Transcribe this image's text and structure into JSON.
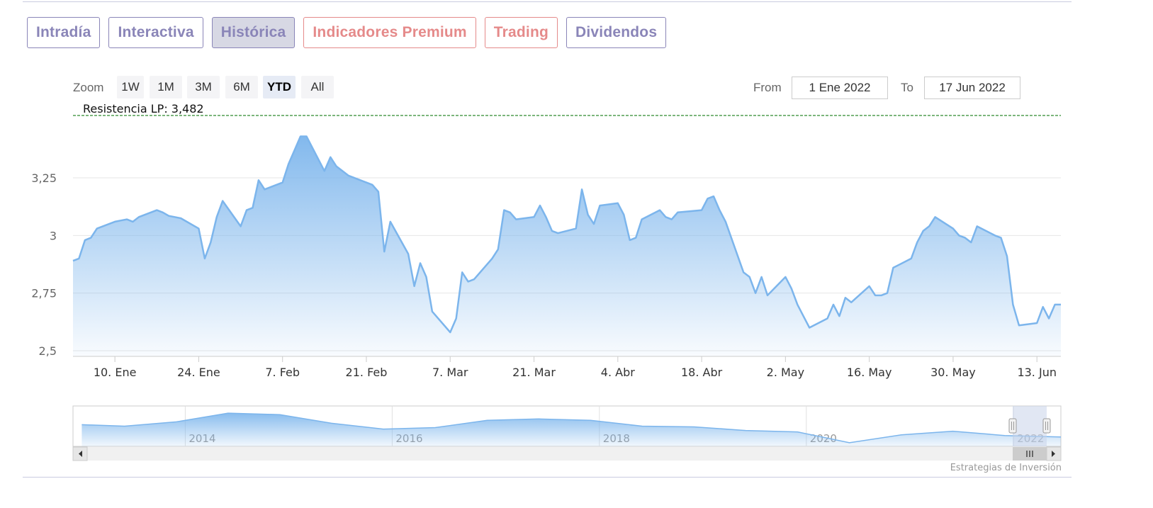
{
  "tabs": [
    {
      "label": "Intradía",
      "style": "normal"
    },
    {
      "label": "Interactiva",
      "style": "normal"
    },
    {
      "label": "Histórica",
      "style": "active"
    },
    {
      "label": "Indicadores Premium",
      "style": "premium"
    },
    {
      "label": "Trading",
      "style": "premium"
    },
    {
      "label": "Dividendos",
      "style": "normal"
    }
  ],
  "range_selector": {
    "zoom_label": "Zoom",
    "buttons": [
      "1W",
      "1M",
      "3M",
      "6M",
      "YTD",
      "All"
    ],
    "selected": "YTD",
    "from_label": "From",
    "from_value": "1 Ene 2022",
    "to_label": "To",
    "to_value": "17 Jun 2022"
  },
  "credits": "Estrategias de Inversión",
  "colors": {
    "line": "#7cb5ec",
    "fill_top": "#7cb5ec",
    "resistance": "#2e8b2e",
    "tab_text": "#8a85b8",
    "premium_text": "#e58a8a",
    "navigator_mask": "#c9d4ea"
  },
  "chart_data": {
    "type": "area",
    "ylim": [
      2.5,
      3.45
    ],
    "yticks": [
      "3,25",
      "3",
      "2,75",
      "2,5"
    ],
    "ytick_values": [
      3.25,
      3.0,
      2.75,
      2.5
    ],
    "xlabels": [
      "10. Ene",
      "24. Ene",
      "7. Feb",
      "21. Feb",
      "7. Mar",
      "21. Mar",
      "4. Abr",
      "18. Abr",
      "2. May",
      "16. May",
      "30. May",
      "13. Jun"
    ],
    "xlabel_dates": [
      "2022-01-10",
      "2022-01-24",
      "2022-02-07",
      "2022-02-21",
      "2022-03-07",
      "2022-03-21",
      "2022-04-04",
      "2022-04-18",
      "2022-05-02",
      "2022-05-16",
      "2022-05-30",
      "2022-06-13"
    ],
    "x_range": [
      "2022-01-03",
      "2022-06-17"
    ],
    "resistance": {
      "label": "Resistencia LP: 3,482",
      "value": 3.482
    },
    "series": [
      {
        "x": [
          "2022-01-03",
          "2022-01-04",
          "2022-01-05",
          "2022-01-06",
          "2022-01-07",
          "2022-01-10",
          "2022-01-11",
          "2022-01-12",
          "2022-01-13",
          "2022-01-14",
          "2022-01-17",
          "2022-01-18",
          "2022-01-19",
          "2022-01-20",
          "2022-01-21",
          "2022-01-24",
          "2022-01-25",
          "2022-01-26",
          "2022-01-27",
          "2022-01-28",
          "2022-01-31",
          "2022-02-01",
          "2022-02-02",
          "2022-02-03",
          "2022-02-04",
          "2022-02-07",
          "2022-02-08",
          "2022-02-09",
          "2022-02-10",
          "2022-02-11",
          "2022-02-14",
          "2022-02-15",
          "2022-02-16",
          "2022-02-17",
          "2022-02-18",
          "2022-02-21",
          "2022-02-22",
          "2022-02-23",
          "2022-02-24",
          "2022-02-25",
          "2022-02-28",
          "2022-03-01",
          "2022-03-02",
          "2022-03-03",
          "2022-03-04",
          "2022-03-07",
          "2022-03-08",
          "2022-03-09",
          "2022-03-10",
          "2022-03-11",
          "2022-03-14",
          "2022-03-15",
          "2022-03-16",
          "2022-03-17",
          "2022-03-18",
          "2022-03-21",
          "2022-03-22",
          "2022-03-23",
          "2022-03-24",
          "2022-03-25",
          "2022-03-28",
          "2022-03-29",
          "2022-03-30",
          "2022-03-31",
          "2022-04-01",
          "2022-04-04",
          "2022-04-05",
          "2022-04-06",
          "2022-04-07",
          "2022-04-08",
          "2022-04-11",
          "2022-04-12",
          "2022-04-13",
          "2022-04-14",
          "2022-04-18",
          "2022-04-19",
          "2022-04-20",
          "2022-04-21",
          "2022-04-22",
          "2022-04-25",
          "2022-04-26",
          "2022-04-27",
          "2022-04-28",
          "2022-04-29",
          "2022-05-02",
          "2022-05-03",
          "2022-05-04",
          "2022-05-05",
          "2022-05-06",
          "2022-05-09",
          "2022-05-10",
          "2022-05-11",
          "2022-05-12",
          "2022-05-13",
          "2022-05-16",
          "2022-05-17",
          "2022-05-18",
          "2022-05-19",
          "2022-05-20",
          "2022-05-23",
          "2022-05-24",
          "2022-05-25",
          "2022-05-26",
          "2022-05-27",
          "2022-05-30",
          "2022-05-31",
          "2022-06-01",
          "2022-06-02",
          "2022-06-03",
          "2022-06-06",
          "2022-06-07",
          "2022-06-08",
          "2022-06-09",
          "2022-06-10",
          "2022-06-13",
          "2022-06-14",
          "2022-06-15",
          "2022-06-16",
          "2022-06-17"
        ],
        "y": [
          2.89,
          2.9,
          2.98,
          2.99,
          3.03,
          3.06,
          3.065,
          3.07,
          3.06,
          3.08,
          3.11,
          3.1,
          3.085,
          3.08,
          3.075,
          3.03,
          2.9,
          2.97,
          3.08,
          3.15,
          3.04,
          3.11,
          3.12,
          3.24,
          3.2,
          3.23,
          3.31,
          3.37,
          3.43,
          3.43,
          3.28,
          3.34,
          3.3,
          3.28,
          3.26,
          3.23,
          3.22,
          3.19,
          2.93,
          3.06,
          2.92,
          2.78,
          2.88,
          2.82,
          2.67,
          2.58,
          2.64,
          2.84,
          2.8,
          2.81,
          2.9,
          2.94,
          3.11,
          3.1,
          3.07,
          3.08,
          3.13,
          3.08,
          3.02,
          3.01,
          3.03,
          3.2,
          3.09,
          3.05,
          3.13,
          3.14,
          3.09,
          2.98,
          2.99,
          3.07,
          3.11,
          3.08,
          3.07,
          3.1,
          3.11,
          3.16,
          3.17,
          3.11,
          3.06,
          2.84,
          2.82,
          2.75,
          2.82,
          2.74,
          2.82,
          2.77,
          2.7,
          2.65,
          2.6,
          2.64,
          2.7,
          2.65,
          2.73,
          2.71,
          2.78,
          2.74,
          2.74,
          2.75,
          2.86,
          2.9,
          2.97,
          3.02,
          3.04,
          3.08,
          3.03,
          3.0,
          2.99,
          2.97,
          3.04,
          3.0,
          2.99,
          2.91,
          2.7,
          2.61,
          2.62,
          2.69,
          2.64,
          2.7,
          2.7
        ]
      }
    ],
    "navigator": {
      "xlabels": [
        "2014",
        "2016",
        "2018",
        "2020",
        "2022"
      ],
      "x_range": [
        "2012-12-01",
        "2022-06-17"
      ],
      "x": [
        "2013-01-01",
        "2013-06-01",
        "2013-12-01",
        "2014-06-01",
        "2014-12-01",
        "2015-06-01",
        "2015-12-01",
        "2016-06-01",
        "2016-12-01",
        "2017-06-01",
        "2017-12-01",
        "2018-06-01",
        "2018-12-01",
        "2019-06-01",
        "2019-12-01",
        "2020-06-01",
        "2020-12-01",
        "2021-06-01",
        "2021-12-01",
        "2022-06-17"
      ],
      "y": [
        2.8,
        2.6,
        3.2,
        4.4,
        4.2,
        3.0,
        2.2,
        2.4,
        3.4,
        3.6,
        3.4,
        2.6,
        2.5,
        2.0,
        1.8,
        0.3,
        1.4,
        1.9,
        1.3,
        1.1
      ],
      "ylim": [
        0,
        5
      ],
      "selection": [
        "2022-01-03",
        "2022-06-17"
      ]
    }
  }
}
